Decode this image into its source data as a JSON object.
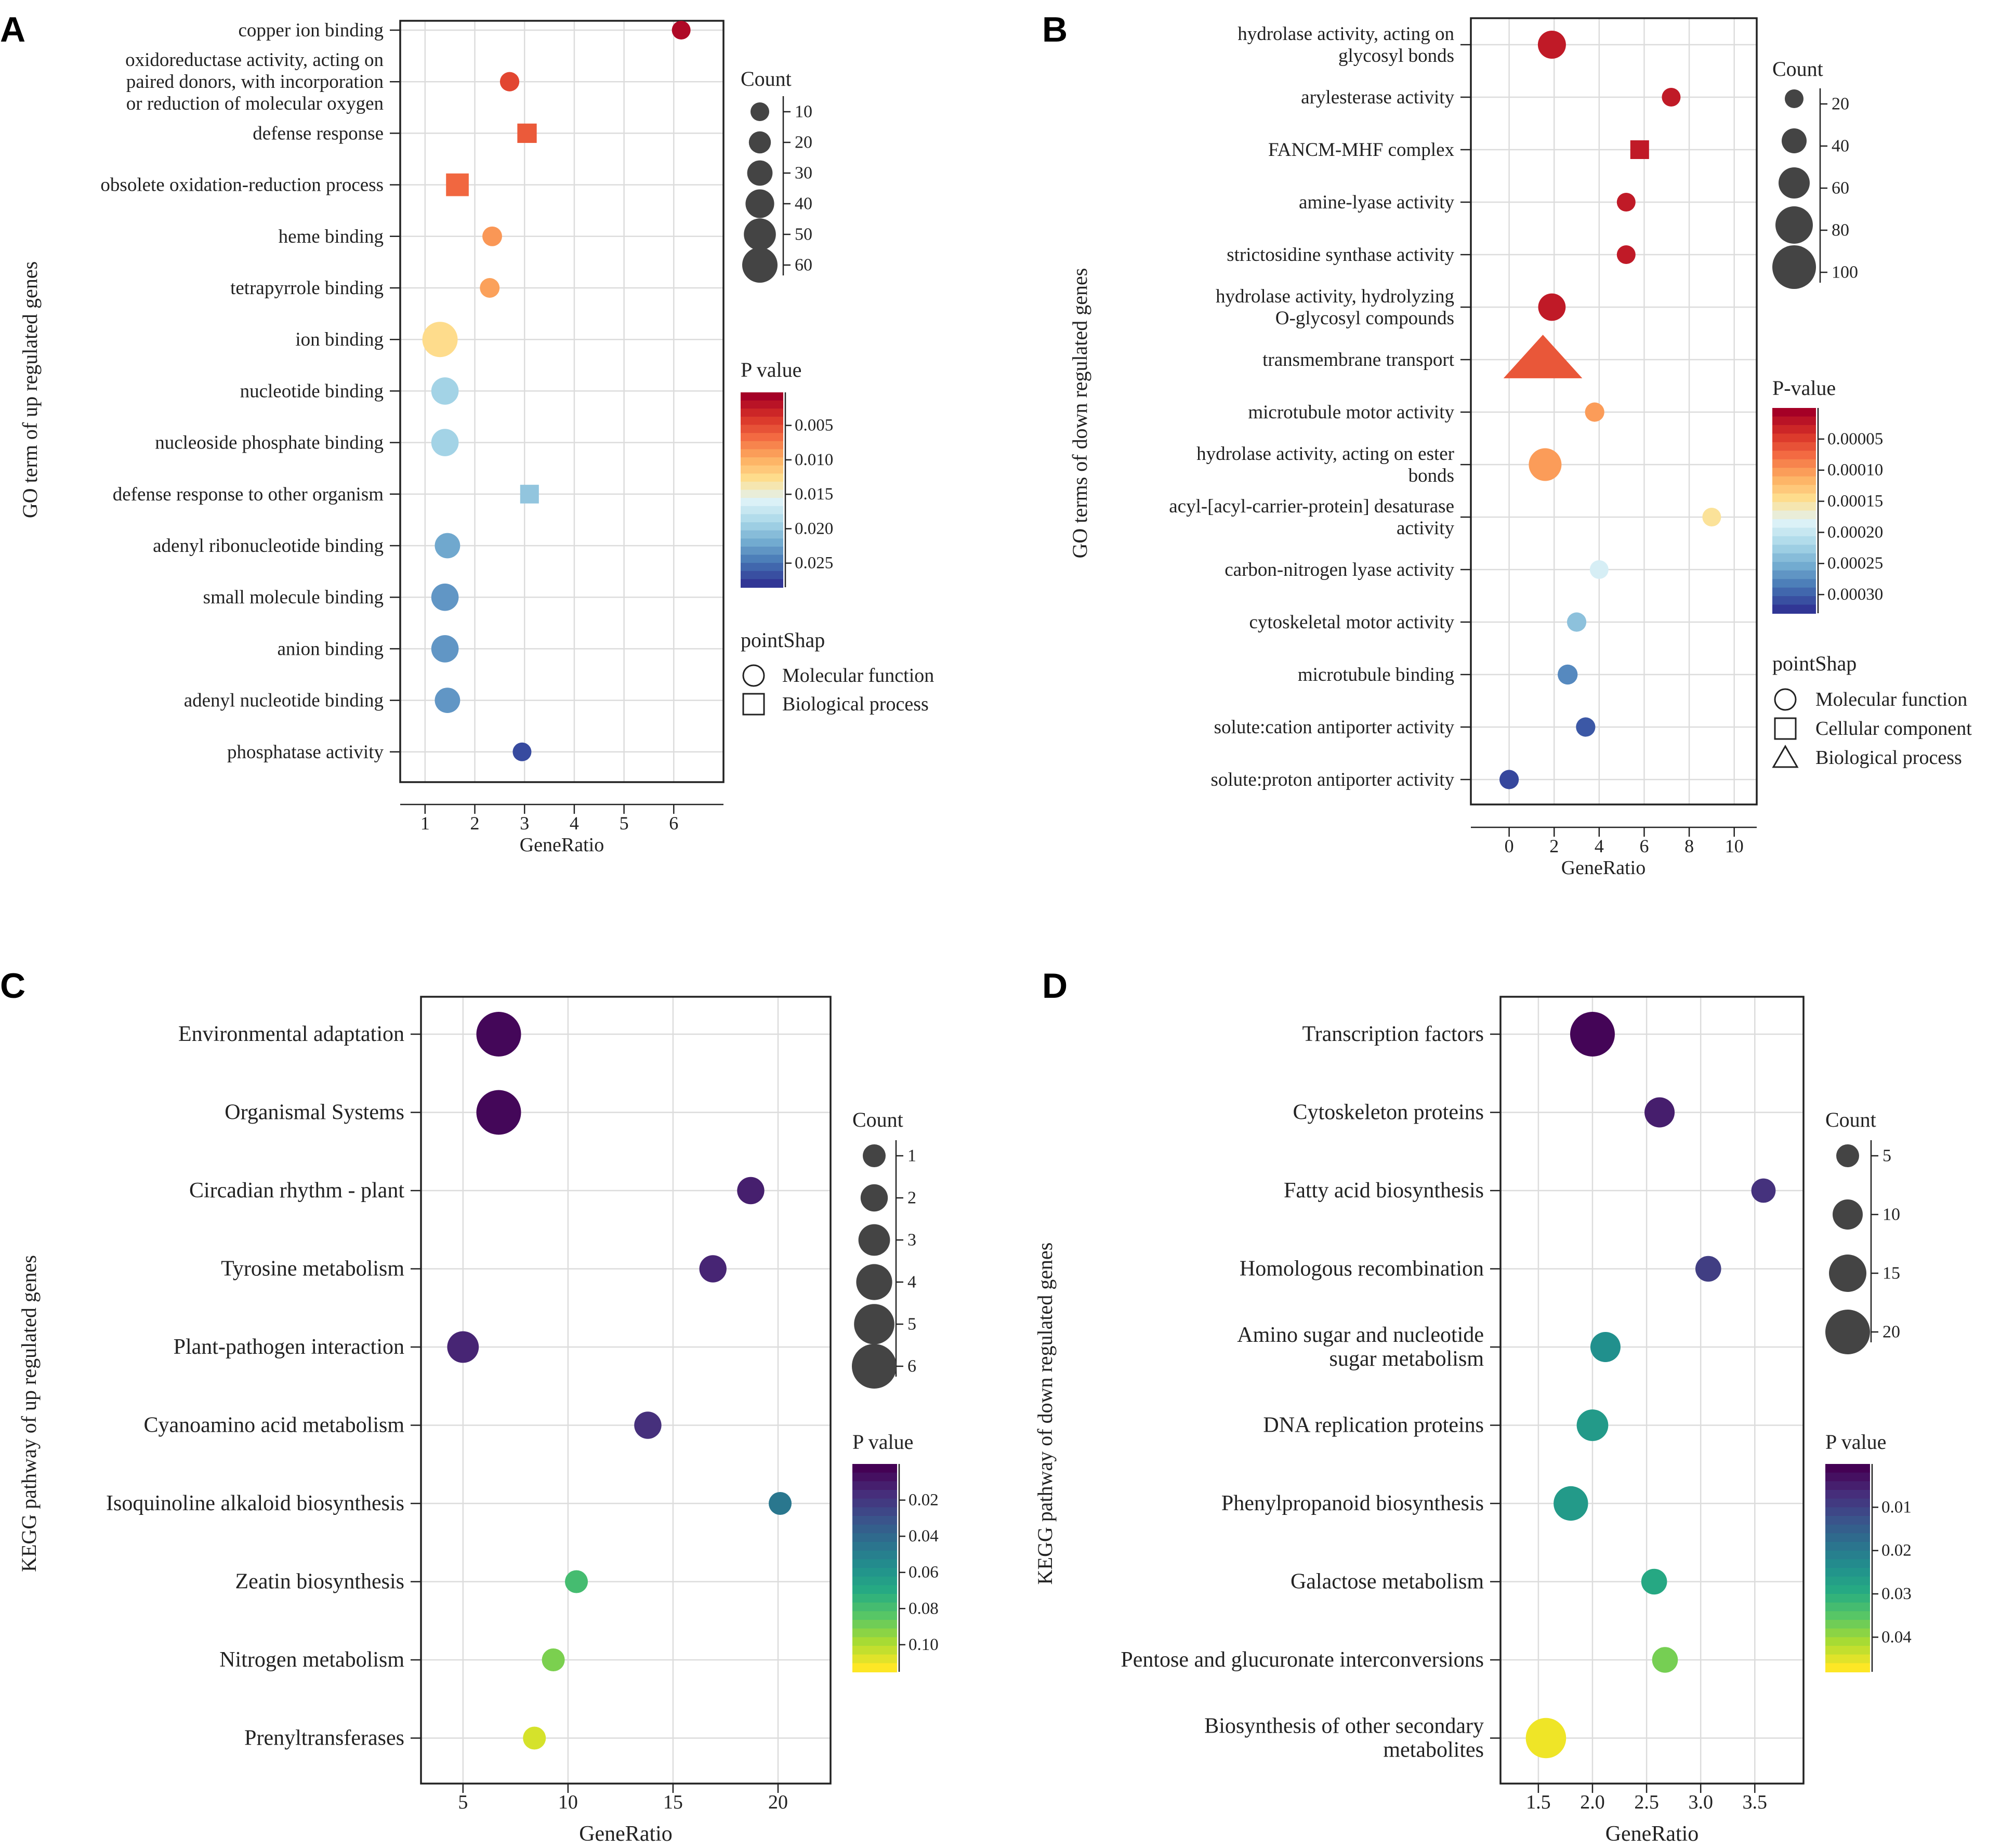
{
  "chart_data": [
    {
      "panel": "A",
      "type": "scatter",
      "xlabel": "GeneRatio",
      "ylabel": "GO term of up regulated genes",
      "xlim": [
        0.5,
        7
      ],
      "xticks": [
        1,
        2,
        3,
        4,
        5,
        6
      ],
      "size_legend": {
        "title": "Count",
        "values": [
          10,
          20,
          30,
          40,
          50,
          60
        ]
      },
      "color_legend": {
        "title": "P value",
        "range": [
          0.0002,
          0.0285
        ],
        "ticks": [
          "0.005",
          "0.010",
          "0.015",
          "0.020",
          "0.025"
        ],
        "colorscale": "RdYlBu"
      },
      "shape_legend": {
        "title": "pointShap",
        "items": [
          {
            "shape": "circle",
            "label": "Molecular function"
          },
          {
            "shape": "square",
            "label": "Biological process"
          }
        ]
      },
      "points": [
        {
          "term": [
            "copper ion binding"
          ],
          "x": 6.15,
          "count": 10,
          "p": 0.0008,
          "shape": "circle"
        },
        {
          "term": [
            "oxidoreductase activity, acting on",
            "paired donors, with incorporation",
            "or reduction of molecular oxygen"
          ],
          "x": 2.7,
          "count": 12,
          "p": 0.0045,
          "shape": "circle"
        },
        {
          "term": [
            "defense response"
          ],
          "x": 3.05,
          "count": 12,
          "p": 0.0055,
          "shape": "square"
        },
        {
          "term": [
            "obsolete oxidation-reduction process"
          ],
          "x": 1.65,
          "count": 22,
          "p": 0.0062,
          "shape": "square"
        },
        {
          "term": [
            "heme binding"
          ],
          "x": 2.35,
          "count": 13,
          "p": 0.0085,
          "shape": "circle"
        },
        {
          "term": [
            "tetrapyrrole binding"
          ],
          "x": 2.3,
          "count": 13,
          "p": 0.009,
          "shape": "circle"
        },
        {
          "term": [
            "ion binding"
          ],
          "x": 1.3,
          "count": 60,
          "p": 0.0125,
          "shape": "circle"
        },
        {
          "term": [
            "nucleotide binding"
          ],
          "x": 1.4,
          "count": 36,
          "p": 0.0195,
          "shape": "circle"
        },
        {
          "term": [
            "nucleoside phosphate binding"
          ],
          "x": 1.4,
          "count": 36,
          "p": 0.0195,
          "shape": "circle"
        },
        {
          "term": [
            "defense response to other organism"
          ],
          "x": 3.1,
          "count": 10,
          "p": 0.0205,
          "shape": "square"
        },
        {
          "term": [
            "adenyl ribonucleotide binding"
          ],
          "x": 1.45,
          "count": 30,
          "p": 0.0225,
          "shape": "circle"
        },
        {
          "term": [
            "small molecule binding"
          ],
          "x": 1.4,
          "count": 36,
          "p": 0.0235,
          "shape": "circle"
        },
        {
          "term": [
            "anion binding"
          ],
          "x": 1.4,
          "count": 36,
          "p": 0.0235,
          "shape": "circle"
        },
        {
          "term": [
            "adenyl nucleotide binding"
          ],
          "x": 1.45,
          "count": 30,
          "p": 0.0235,
          "shape": "circle"
        },
        {
          "term": [
            "phosphatase activity"
          ],
          "x": 2.95,
          "count": 8,
          "p": 0.0275,
          "shape": "circle"
        }
      ]
    },
    {
      "panel": "B",
      "type": "scatter",
      "xlabel": "GeneRatio",
      "ylabel": "GO terms of down regulated genes",
      "xlim": [
        -1.7,
        11
      ],
      "xticks": [
        0,
        2,
        4,
        6,
        8,
        10
      ],
      "size_legend": {
        "title": "Count",
        "values": [
          20,
          40,
          60,
          80,
          100
        ]
      },
      "color_legend": {
        "title": "P-value",
        "range": [
          0.0,
          0.00033
        ],
        "ticks": [
          "0.00005",
          "0.00010",
          "0.00015",
          "0.00020",
          "0.00025",
          "0.00030"
        ],
        "colorscale": "RdYlBu"
      },
      "shape_legend": {
        "title": "pointShap",
        "items": [
          {
            "shape": "circle",
            "label": "Molecular function"
          },
          {
            "shape": "square",
            "label": "Cellular component"
          },
          {
            "shape": "triangle",
            "label": "Biological process"
          }
        ]
      },
      "points": [
        {
          "term": [
            "hydrolase activity, acting on",
            "glycosyl bonds"
          ],
          "x": 1.9,
          "count": 50,
          "p": 2e-05,
          "shape": "circle"
        },
        {
          "term": [
            "arylesterase activity"
          ],
          "x": 7.2,
          "count": 18,
          "p": 2e-05,
          "shape": "circle"
        },
        {
          "term": [
            "FANCM-MHF complex"
          ],
          "x": 5.8,
          "count": 18,
          "p": 2e-05,
          "shape": "square"
        },
        {
          "term": [
            "amine-lyase activity"
          ],
          "x": 5.2,
          "count": 18,
          "p": 2e-05,
          "shape": "circle"
        },
        {
          "term": [
            "strictosidine synthase activity"
          ],
          "x": 5.2,
          "count": 18,
          "p": 2e-05,
          "shape": "circle"
        },
        {
          "term": [
            "hydrolase activity, hydrolyzing",
            "O-glycosyl compounds"
          ],
          "x": 1.9,
          "count": 48,
          "p": 2e-05,
          "shape": "circle"
        },
        {
          "term": [
            "transmembrane transport"
          ],
          "x": 1.5,
          "count": 100,
          "p": 6e-05,
          "shape": "triangle"
        },
        {
          "term": [
            "microtubule motor activity"
          ],
          "x": 3.8,
          "count": 22,
          "p": 0.0001,
          "shape": "circle"
        },
        {
          "term": [
            "hydrolase activity, acting on ester",
            "bonds"
          ],
          "x": 1.6,
          "count": 65,
          "p": 0.0001,
          "shape": "circle"
        },
        {
          "term": [
            "acyl-[acyl-carrier-protein] desaturase",
            "activity"
          ],
          "x": 9.0,
          "count": 18,
          "p": 0.00015,
          "shape": "circle"
        },
        {
          "term": [
            "carbon-nitrogen lyase activity"
          ],
          "x": 4.0,
          "count": 20,
          "p": 0.00019,
          "shape": "circle"
        },
        {
          "term": [
            "cytoskeletal motor activity"
          ],
          "x": 3.0,
          "count": 22,
          "p": 0.00024,
          "shape": "circle"
        },
        {
          "term": [
            "microtubule binding"
          ],
          "x": 2.6,
          "count": 24,
          "p": 0.00028,
          "shape": "circle"
        },
        {
          "term": [
            "solute:cation antiporter activity"
          ],
          "x": 3.4,
          "count": 22,
          "p": 0.00031,
          "shape": "circle"
        },
        {
          "term": [
            "solute:proton antiporter activity"
          ],
          "x": 0.0,
          "count": 22,
          "p": 0.00032,
          "shape": "circle"
        }
      ]
    },
    {
      "panel": "C",
      "type": "scatter",
      "xlabel": "GeneRatio",
      "ylabel": "KEGG pathway of up regulated genes",
      "xlim": [
        3,
        22.5
      ],
      "xticks": [
        5,
        10,
        15,
        20
      ],
      "size_legend": {
        "title": "Count",
        "values": [
          1,
          2,
          3,
          4,
          5,
          6
        ]
      },
      "color_legend": {
        "title": "P value",
        "range": [
          0.0,
          0.115
        ],
        "ticks": [
          "0.02",
          "0.04",
          "0.06",
          "0.08",
          "0.10"
        ],
        "colorscale": "viridis"
      },
      "points": [
        {
          "term": [
            "Environmental adaptation"
          ],
          "x": 6.7,
          "count": 6,
          "p": 0.002
        },
        {
          "term": [
            "Organismal Systems"
          ],
          "x": 6.7,
          "count": 6,
          "p": 0.002
        },
        {
          "term": [
            "Circadian rhythm - plant"
          ],
          "x": 18.7,
          "count": 2,
          "p": 0.01
        },
        {
          "term": [
            "Tyrosine metabolism"
          ],
          "x": 16.9,
          "count": 2,
          "p": 0.012
        },
        {
          "term": [
            "Plant-pathogen interaction"
          ],
          "x": 5.0,
          "count": 3,
          "p": 0.012
        },
        {
          "term": [
            "Cyanoamino acid metabolism"
          ],
          "x": 13.8,
          "count": 2,
          "p": 0.016
        },
        {
          "term": [
            "Isoquinoline alkaloid biosynthesis"
          ],
          "x": 20.1,
          "count": 1,
          "p": 0.046
        },
        {
          "term": [
            "Zeatin biosynthesis"
          ],
          "x": 10.4,
          "count": 1,
          "p": 0.08
        },
        {
          "term": [
            "Nitrogen metabolism"
          ],
          "x": 9.3,
          "count": 1,
          "p": 0.092
        },
        {
          "term": [
            "Prenyltransferases"
          ],
          "x": 8.4,
          "count": 1,
          "p": 0.108
        }
      ]
    },
    {
      "panel": "D",
      "type": "scatter",
      "xlabel": "GeneRatio",
      "ylabel": "KEGG pathway of down regulated genes",
      "xlim": [
        1.15,
        3.95
      ],
      "xticks": [
        1.5,
        2.0,
        2.5,
        3.0,
        3.5
      ],
      "xtick_labels": [
        "1.5",
        "2.0",
        "2.5",
        "3.0",
        "3.5"
      ],
      "size_legend": {
        "title": "Count",
        "values": [
          5,
          10,
          15,
          20
        ]
      },
      "color_legend": {
        "title": "P value",
        "range": [
          0.0,
          0.048
        ],
        "ticks": [
          "0.01",
          "0.02",
          "0.03",
          "0.04"
        ],
        "colorscale": "viridis"
      },
      "points": [
        {
          "term": [
            "Transcription factors"
          ],
          "x": 2.0,
          "count": 22,
          "p": 0.0005
        },
        {
          "term": [
            "Cytoskeleton proteins"
          ],
          "x": 2.62,
          "count": 10,
          "p": 0.004
        },
        {
          "term": [
            "Fatty acid biosynthesis"
          ],
          "x": 3.58,
          "count": 6,
          "p": 0.007
        },
        {
          "term": [
            "Homologous recombination"
          ],
          "x": 3.07,
          "count": 7,
          "p": 0.009
        },
        {
          "term": [
            "Amino sugar and nucleotide",
            "sugar metabolism"
          ],
          "x": 2.12,
          "count": 10,
          "p": 0.024
        },
        {
          "term": [
            "DNA replication proteins"
          ],
          "x": 2.0,
          "count": 11,
          "p": 0.026
        },
        {
          "term": [
            "Phenylpropanoid biosynthesis"
          ],
          "x": 1.8,
          "count": 13,
          "p": 0.026
        },
        {
          "term": [
            "Galactose metabolism"
          ],
          "x": 2.57,
          "count": 7,
          "p": 0.029
        },
        {
          "term": [
            "Pentose and glucuronate interconversions"
          ],
          "x": 2.67,
          "count": 7,
          "p": 0.038
        },
        {
          "term": [
            "Biosynthesis of other secondary",
            "metabolites"
          ],
          "x": 1.57,
          "count": 17,
          "p": 0.047
        }
      ]
    }
  ]
}
